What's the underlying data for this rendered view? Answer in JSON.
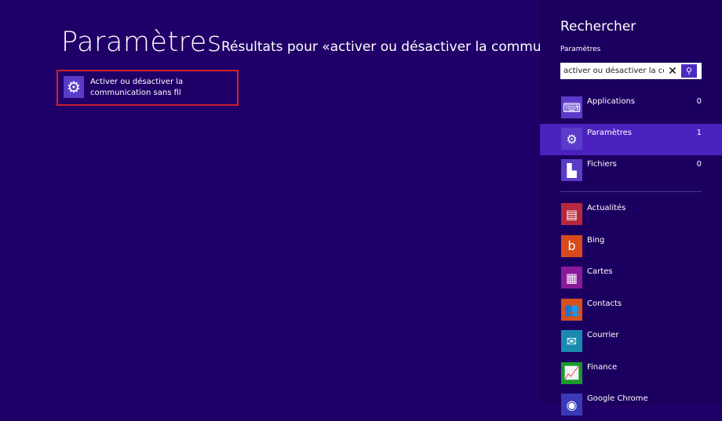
{
  "main": {
    "title": "Paramètres",
    "subtitle": "Résultats pour «activer ou désactiver la communicatio",
    "result": {
      "label": "Activer ou désactiver la communication sans fil",
      "icon": "gear-icon"
    }
  },
  "panel": {
    "title": "Rechercher",
    "scope": "Paramètres",
    "search": {
      "value": "activer ou désactiver la com",
      "clear_icon": "close-icon",
      "search_icon": "search-icon"
    },
    "categories": [
      {
        "label": "Applications",
        "count": "0",
        "icon": "keyboard-icon",
        "selected": false
      },
      {
        "label": "Paramètres",
        "count": "1",
        "icon": "gear-icon",
        "selected": true
      },
      {
        "label": "Fichiers",
        "count": "0",
        "icon": "file-icon",
        "selected": false
      }
    ],
    "apps": [
      {
        "label": "Actualités",
        "color": "#b8283c",
        "icon": "news-icon"
      },
      {
        "label": "Bing",
        "color": "#d84a1c",
        "icon": "bing-icon"
      },
      {
        "label": "Cartes",
        "color": "#8a1a9a",
        "icon": "map-icon"
      },
      {
        "label": "Contacts",
        "color": "#d8501c",
        "icon": "people-icon"
      },
      {
        "label": "Courrier",
        "color": "#1a8ab0",
        "icon": "mail-icon"
      },
      {
        "label": "Finance",
        "color": "#1a9a2a",
        "icon": "chart-icon"
      },
      {
        "label": "Google Chrome",
        "color": "#3a3ab8",
        "icon": "chrome-icon"
      }
    ]
  },
  "colors": {
    "background": "#200068",
    "panel": "#1c0060",
    "selected": "#4b22c0",
    "tile": "#5a3cc8",
    "highlight_border": "#d0202a"
  }
}
